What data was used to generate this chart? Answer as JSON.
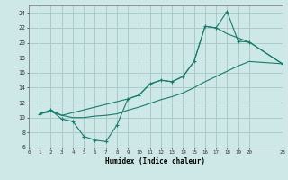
{
  "xlabel": "Humidex (Indice chaleur)",
  "bg_color": "#cde8e6",
  "grid_color": "#a8ccca",
  "line_color": "#1a7a6e",
  "xlim": [
    0,
    23
  ],
  "ylim": [
    6,
    25
  ],
  "xtick_positions": [
    0,
    1,
    2,
    3,
    4,
    5,
    6,
    7,
    8,
    9,
    10,
    11,
    12,
    13,
    14,
    15,
    16,
    17,
    18,
    19,
    20,
    23
  ],
  "xtick_labels": [
    "0",
    "1",
    "2",
    "3",
    "4",
    "5",
    "6",
    "7",
    "8",
    "9",
    "10",
    "11",
    "12",
    "13",
    "14",
    "15",
    "16",
    "17",
    "18",
    "19",
    "20",
    "23"
  ],
  "ytick_positions": [
    6,
    8,
    10,
    12,
    14,
    16,
    18,
    20,
    22,
    24
  ],
  "main_x": [
    1,
    2,
    3,
    4,
    5,
    6,
    7,
    8,
    9,
    10,
    11,
    12,
    13,
    14,
    15,
    16,
    17,
    18,
    19,
    20,
    23
  ],
  "main_y": [
    10.5,
    11.0,
    9.8,
    9.5,
    7.5,
    7.0,
    6.8,
    9.0,
    12.5,
    13.0,
    14.5,
    15.0,
    14.8,
    15.5,
    17.5,
    22.2,
    22.0,
    24.2,
    20.2,
    20.1,
    17.2
  ],
  "upper_x": [
    1,
    2,
    3,
    9,
    10,
    11,
    12,
    13,
    14,
    15,
    16,
    17,
    18,
    20,
    23
  ],
  "upper_y": [
    10.5,
    11.0,
    10.3,
    12.5,
    13.0,
    14.5,
    15.0,
    14.8,
    15.5,
    17.5,
    22.2,
    22.0,
    21.2,
    20.1,
    17.2
  ],
  "lower_x": [
    1,
    2,
    3,
    4,
    5,
    6,
    7,
    8,
    9,
    10,
    11,
    12,
    13,
    14,
    15,
    16,
    17,
    18,
    19,
    20,
    23
  ],
  "lower_y": [
    10.5,
    10.8,
    10.3,
    10.0,
    10.0,
    10.2,
    10.3,
    10.5,
    11.0,
    11.4,
    11.9,
    12.4,
    12.8,
    13.3,
    14.0,
    14.8,
    15.5,
    16.2,
    16.9,
    17.5,
    17.2
  ]
}
